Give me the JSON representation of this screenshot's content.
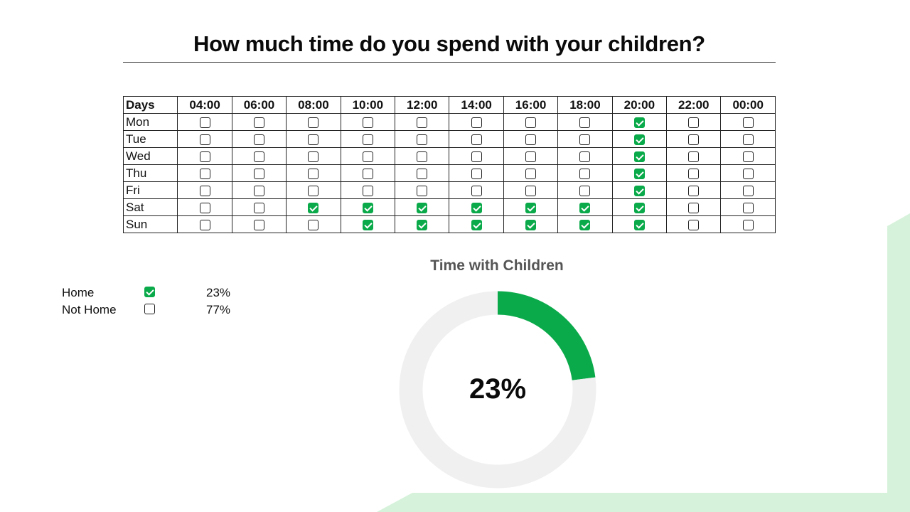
{
  "title": "How much time do you spend with your children?",
  "schedule": {
    "days_header": "Days",
    "times": [
      "04:00",
      "06:00",
      "08:00",
      "10:00",
      "12:00",
      "14:00",
      "16:00",
      "18:00",
      "20:00",
      "22:00",
      "00:00"
    ],
    "rows": [
      {
        "day": "Mon",
        "checked": [
          false,
          false,
          false,
          false,
          false,
          false,
          false,
          false,
          true,
          false,
          false
        ]
      },
      {
        "day": "Tue",
        "checked": [
          false,
          false,
          false,
          false,
          false,
          false,
          false,
          false,
          true,
          false,
          false
        ]
      },
      {
        "day": "Wed",
        "checked": [
          false,
          false,
          false,
          false,
          false,
          false,
          false,
          false,
          true,
          false,
          false
        ]
      },
      {
        "day": "Thu",
        "checked": [
          false,
          false,
          false,
          false,
          false,
          false,
          false,
          false,
          true,
          false,
          false
        ]
      },
      {
        "day": "Fri",
        "checked": [
          false,
          false,
          false,
          false,
          false,
          false,
          false,
          false,
          true,
          false,
          false
        ]
      },
      {
        "day": "Sat",
        "checked": [
          false,
          false,
          true,
          true,
          true,
          true,
          true,
          true,
          true,
          false,
          false
        ]
      },
      {
        "day": "Sun",
        "checked": [
          false,
          false,
          false,
          true,
          true,
          true,
          true,
          true,
          true,
          false,
          false
        ]
      }
    ]
  },
  "legend": [
    {
      "label": "Home",
      "checked": true,
      "percent": "23%"
    },
    {
      "label": "Not Home",
      "checked": false,
      "percent": "77%"
    }
  ],
  "chart_data": {
    "type": "pie",
    "title": "Time with Children",
    "categories": [
      "Home",
      "Not Home"
    ],
    "values": [
      23,
      77
    ],
    "center_label": "23%",
    "colors": {
      "Home": "#0aaa4a",
      "Not Home": "#f0f0f0"
    }
  },
  "colors": {
    "accent": "#0aaa4a",
    "decor": "#d8f3dc"
  }
}
